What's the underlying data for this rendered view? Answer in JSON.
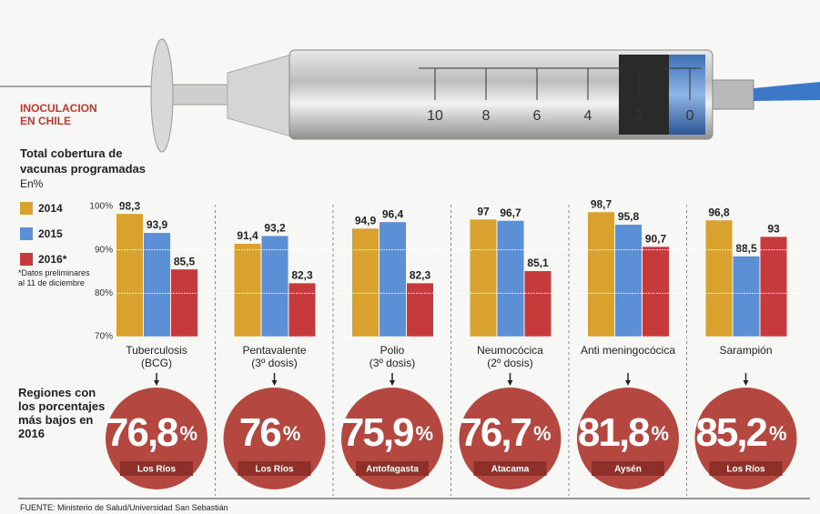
{
  "header": {
    "title": "INOCULACION\nEN CHILE",
    "syringe_scale": [
      "10",
      "8",
      "6",
      "4",
      "2",
      "0"
    ]
  },
  "chart_data": {
    "type": "bar",
    "title": "Total cobertura de\nvacunas programadas",
    "subtitle": "En%",
    "categories": [
      "Tuberculosis\n(BCG)",
      "Pentavalente\n(3º dosis)",
      "Polio\n(3º dosis)",
      "Neumocócica\n(2º dosis)",
      "Anti meningocócica",
      "Sarampión"
    ],
    "series": [
      {
        "name": "2014",
        "color": "#d9a12e",
        "values": [
          98.3,
          91.4,
          94.9,
          97,
          98.7,
          96.8
        ],
        "value_labels": [
          "98,3",
          "91,4",
          "94,9",
          "97",
          "98,7",
          "96,8"
        ]
      },
      {
        "name": "2015",
        "color": "#5b8fd6",
        "values": [
          93.9,
          93.2,
          96.4,
          96.7,
          95.8,
          88.5
        ],
        "value_labels": [
          "93,9",
          "93,2",
          "96,4",
          "96,7",
          "95,8",
          "88,5"
        ]
      },
      {
        "name": "2016*",
        "color": "#c63a3c",
        "values": [
          85.5,
          82.3,
          82.3,
          85.1,
          90.7,
          93
        ],
        "value_labels": [
          "85,5",
          "82,3",
          "82,3",
          "85,1",
          "90,7",
          "93"
        ]
      }
    ],
    "ylim": [
      70,
      100
    ],
    "yticks": [
      {
        "value": 70,
        "label": "70%"
      },
      {
        "value": 80,
        "label": "80%"
      },
      {
        "value": 90,
        "label": "90%"
      },
      {
        "value": 100,
        "label": "100%"
      }
    ],
    "grid": true,
    "note": "*Datos preliminares\nal 11 de diciembre"
  },
  "lowest": {
    "title": "Regiones con los porcentajes más bajos en 2016",
    "unit": "%",
    "items": [
      {
        "label": "76,8",
        "region": "Los Ríos"
      },
      {
        "label": "76",
        "region": "Los Ríos"
      },
      {
        "label": "75,9",
        "region": "Antofagasta"
      },
      {
        "label": "76,7",
        "region": "Atacama"
      },
      {
        "label": "81,8",
        "region": "Aysén"
      },
      {
        "label": "85,2",
        "region": "Los Ríos"
      }
    ]
  },
  "source": "FUENTE: Ministerio de Salud/Universidad San Sebastián"
}
